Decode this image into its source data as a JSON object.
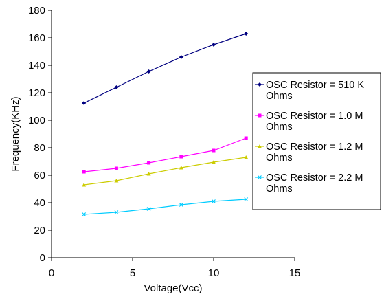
{
  "chart_data": {
    "type": "line",
    "title": "",
    "xlabel": "Voltage(Vcc)",
    "ylabel": "Frequency(KHz)",
    "xlim": [
      0,
      15
    ],
    "ylim": [
      0,
      180
    ],
    "xticks": [
      0,
      5,
      10,
      15
    ],
    "yticks": [
      0,
      20,
      40,
      60,
      80,
      100,
      120,
      140,
      160,
      180
    ],
    "grid": false,
    "legend_position": "right",
    "x": [
      2,
      4,
      6,
      8,
      10,
      12
    ],
    "series": [
      {
        "name_lines": [
          "OSC Resistor = 510 K",
          "Ohms"
        ],
        "values": [
          112.5,
          124,
          135.5,
          146,
          155,
          163
        ],
        "color": "#000080",
        "marker": "diamond"
      },
      {
        "name_lines": [
          "OSC Resistor = 1.0 M",
          "Ohms"
        ],
        "values": [
          62.5,
          65,
          69,
          73.5,
          78,
          87
        ],
        "color": "#ff00ff",
        "marker": "square"
      },
      {
        "name_lines": [
          "OSC Resistor = 1.2 M",
          "Ohms"
        ],
        "values": [
          53,
          56,
          61,
          65.5,
          69.5,
          73
        ],
        "color": "#cccc00",
        "marker": "triangle"
      },
      {
        "name_lines": [
          "OSC Resistor = 2.2 M",
          "Ohms"
        ],
        "values": [
          31.5,
          33,
          35.5,
          38.5,
          41,
          42.5
        ],
        "color": "#00ccff",
        "marker": "x"
      }
    ]
  }
}
